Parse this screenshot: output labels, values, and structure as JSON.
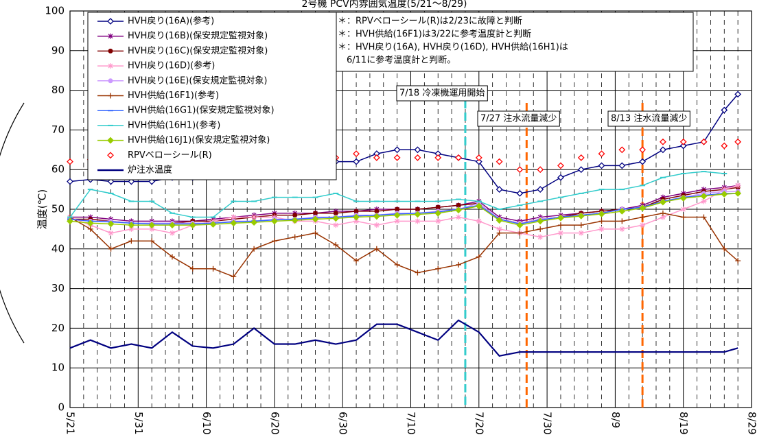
{
  "chart_data": {
    "type": "line",
    "title": "2号機 PCV内雰囲気温度(5/21～8/29)",
    "y_label": "温度(℃)",
    "x": [
      "5/21",
      "5/24",
      "5/27",
      "5/30",
      "6/2",
      "6/5",
      "6/8",
      "6/11",
      "6/14",
      "6/17",
      "6/20",
      "6/23",
      "6/26",
      "6/29",
      "7/2",
      "7/5",
      "7/8",
      "7/11",
      "7/14",
      "7/17",
      "7/20",
      "7/23",
      "7/26",
      "7/29",
      "8/1",
      "8/4",
      "8/7",
      "8/10",
      "8/13",
      "8/16",
      "8/19",
      "8/22",
      "8/25",
      "8/27"
    ],
    "xlim": [
      "5/21",
      "8/29"
    ],
    "xticks": [
      "5/21",
      "5/31",
      "6/10",
      "6/20",
      "6/30",
      "7/10",
      "7/20",
      "7/30",
      "8/9",
      "8/19",
      "8/29"
    ],
    "ylim": [
      0,
      100
    ],
    "yticks": [
      0,
      10,
      20,
      30,
      40,
      50,
      60,
      70,
      80,
      90,
      100
    ],
    "grid": true,
    "series": [
      {
        "name": "HVH戻り(16A)(参考)",
        "color": "#000080",
        "marker": "diamond-open",
        "line": true,
        "values": [
          57,
          57.5,
          57,
          57,
          57,
          58,
          58,
          59,
          59,
          59,
          60,
          61,
          62,
          62,
          62,
          64,
          65,
          65,
          64,
          63,
          62,
          55,
          54,
          55,
          58,
          60,
          61,
          61,
          62,
          65,
          66,
          67,
          75,
          79
        ]
      },
      {
        "name": "HVH戻り(16B)(保安規定監視対象)",
        "color": "#800080",
        "marker": "asterisk",
        "line": true,
        "values": [
          48,
          48,
          47.5,
          47,
          47,
          47,
          47,
          47.5,
          48,
          48.5,
          49,
          49,
          49,
          49.5,
          49.5,
          50,
          50,
          50,
          50.5,
          51,
          52,
          48,
          47,
          48,
          48.5,
          49,
          49.5,
          50,
          51,
          53,
          54,
          55,
          55.5,
          56
        ]
      },
      {
        "name": "HVH戻り(16C)(保安規定監視対象)",
        "color": "#800000",
        "marker": "circle",
        "line": true,
        "values": [
          47.5,
          47.5,
          47,
          46.5,
          46.5,
          46.5,
          47,
          47,
          47.5,
          48,
          48.5,
          48.5,
          49,
          49,
          49.5,
          49.5,
          50,
          50,
          50.5,
          51,
          51.5,
          47.5,
          46.5,
          47.5,
          48,
          49,
          49.5,
          50,
          50.5,
          52.5,
          53.5,
          54.5,
          55,
          55.5
        ]
      },
      {
        "name": "HVH戻り(16D)(参考)",
        "color": "#ff99cc",
        "marker": "asterisk",
        "line": true,
        "values": [
          48,
          46,
          44,
          45,
          45,
          44,
          46,
          47,
          48,
          48,
          48,
          47,
          47,
          46,
          47,
          46,
          47,
          47,
          47,
          48,
          47,
          45,
          44,
          43,
          44,
          44,
          45,
          45,
          46,
          48,
          50,
          52,
          55,
          56
        ]
      },
      {
        "name": "HVH戻り(16E)(保安規定監視対象)",
        "color": "#cc99ff",
        "marker": "circle",
        "line": true,
        "values": [
          47.5,
          47,
          47,
          46.5,
          46.5,
          46.5,
          46.5,
          46.5,
          47,
          47,
          47.5,
          47.5,
          48,
          48,
          48.5,
          48.5,
          49,
          49,
          49.5,
          50,
          51.5,
          47.5,
          46.5,
          47.5,
          48,
          48.5,
          49,
          50,
          50.5,
          52,
          53,
          54,
          54.5,
          54.5
        ]
      },
      {
        "name": "HVH供給(16F1)(参考)",
        "color": "#993300",
        "marker": "plus",
        "line": true,
        "values": [
          48,
          45,
          40,
          42,
          42,
          38,
          35,
          35,
          33,
          40,
          42,
          43,
          44,
          41,
          37,
          40,
          36,
          34,
          35,
          36,
          38,
          44,
          44,
          45,
          46,
          46,
          47,
          47,
          48,
          49,
          48,
          48,
          40,
          37
        ]
      },
      {
        "name": "HVH供給(16G1)(保安規定監視対象)",
        "color": "#3366ff",
        "marker": "dash",
        "line": true,
        "values": [
          47.5,
          47,
          46.8,
          46.5,
          46.3,
          46.3,
          46.3,
          46.5,
          46.8,
          47,
          47.3,
          47.5,
          47.8,
          48,
          48.3,
          48.5,
          48.8,
          49,
          49.3,
          50,
          51,
          47.5,
          46.3,
          47.3,
          48,
          48.5,
          49,
          50,
          50.5,
          52,
          53,
          53.5,
          54,
          54
        ]
      },
      {
        "name": "HVH供給(16H1)(参考)",
        "color": "#33cccc",
        "marker": "dash",
        "line": true,
        "values": [
          48,
          55,
          54,
          52,
          52,
          49,
          48,
          48,
          52,
          52,
          53,
          53,
          53,
          54,
          52,
          52,
          52,
          52,
          52,
          52.5,
          52,
          50,
          51,
          52,
          53,
          54,
          55,
          55,
          56,
          58,
          59,
          59.5,
          59,
          null
        ]
      },
      {
        "name": "HVH供給(16J1)(保安規定監視対象)",
        "color": "#99cc00",
        "marker": "diamond-filled",
        "line": true,
        "values": [
          47,
          46.5,
          46.3,
          46,
          46,
          46,
          46,
          46.2,
          46.5,
          46.7,
          47,
          47.2,
          47.5,
          47.7,
          48,
          48.2,
          48.5,
          48.7,
          49,
          49.8,
          50.8,
          47.2,
          46,
          47,
          47.8,
          48.3,
          48.8,
          49.5,
          50.3,
          51.8,
          52.8,
          53.3,
          53.8,
          54
        ]
      },
      {
        "name": "RPVベローシール(R)",
        "color": "#ff0000",
        "marker": "diamond-open",
        "line": false,
        "values": [
          62,
          62.5,
          63,
          63,
          63,
          62,
          63,
          63,
          63,
          63,
          63,
          63,
          63,
          63,
          64,
          63,
          63,
          63,
          63,
          63,
          63,
          62,
          60,
          60,
          61,
          63,
          64,
          65,
          65,
          67,
          67,
          67,
          66,
          67
        ]
      },
      {
        "name": "炉注水温度",
        "color": "#000080",
        "marker": "none",
        "line": true,
        "values": [
          15,
          17,
          15,
          16,
          15,
          19,
          15.5,
          15,
          16,
          20,
          16,
          16,
          17,
          16,
          17,
          21,
          21,
          19,
          17,
          22,
          19,
          13,
          14,
          14,
          14,
          14,
          14,
          14,
          14,
          14,
          14,
          14,
          14,
          15
        ]
      }
    ],
    "notes": [
      "＊：RPVベローシール(R)は2/23に故障と判断",
      "＊：HVH供給(16F1)は3/22に参考温度計と判断",
      "＊：HVH戻り(16A), HVH戻り(16D), HVH供給(16H1)は",
      "　6/11に参考温度計と判断。"
    ],
    "events": [
      {
        "date": "7/18",
        "label": "7/18 冷凍機運用開始",
        "color": "#33cccc"
      },
      {
        "date": "7/27",
        "label": "7/27 注水流量減少",
        "color": "#ff6600"
      },
      {
        "date": "8/13",
        "label": "8/13 注水流量減少",
        "color": "#ff6600"
      }
    ]
  }
}
